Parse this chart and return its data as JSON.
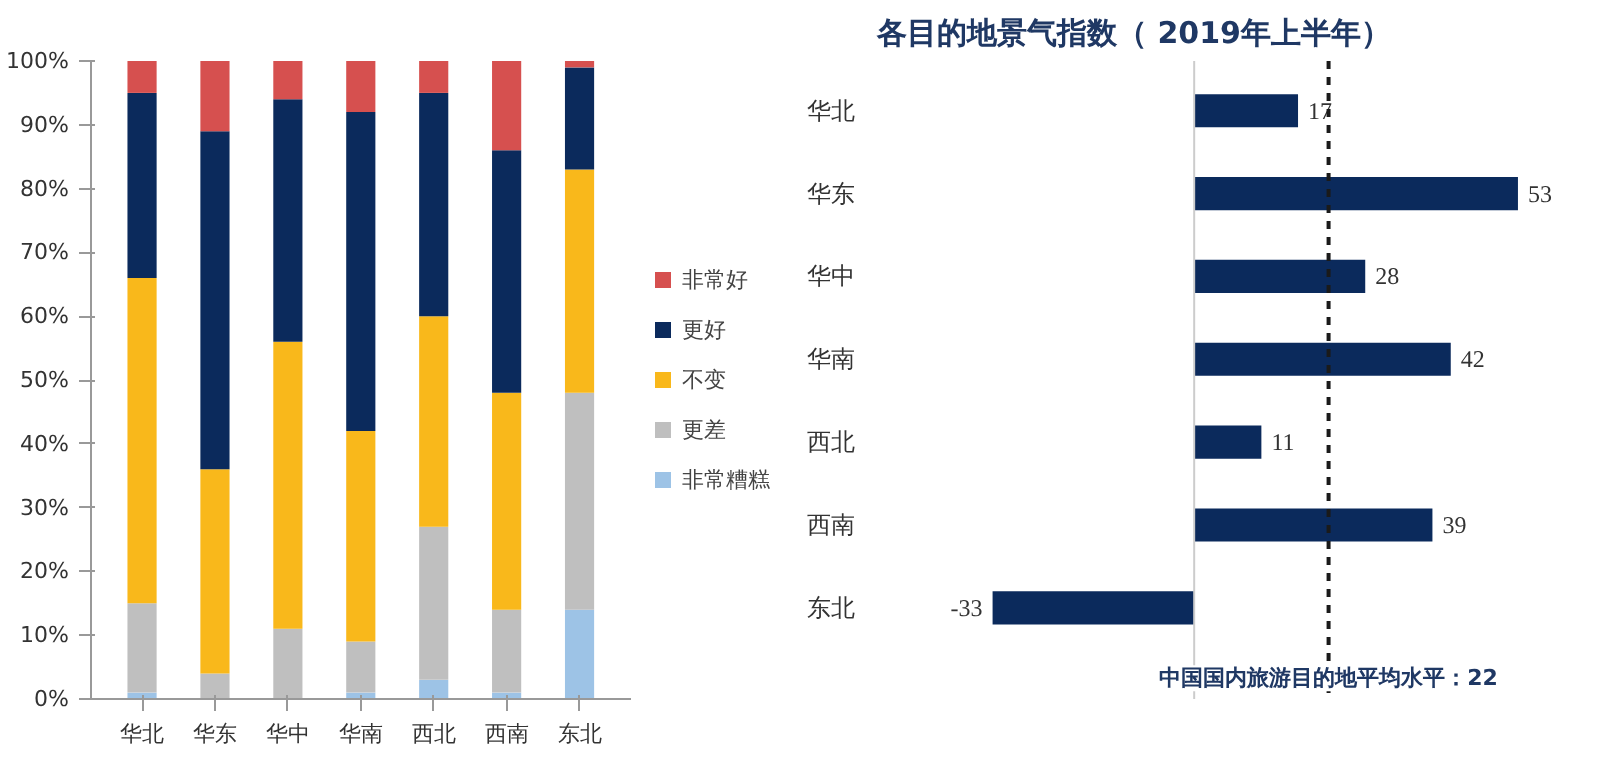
{
  "chart_data": [
    {
      "type": "bar",
      "stacked": true,
      "categories": [
        "华北",
        "华东",
        "华中",
        "华南",
        "西北",
        "西南",
        "东北"
      ],
      "series": [
        {
          "name": "非常糟糕",
          "color": "#9dc3e6",
          "values": [
            1,
            0,
            0,
            1,
            3,
            1,
            14
          ]
        },
        {
          "name": "更差",
          "color": "#bfbfbf",
          "values": [
            14,
            4,
            11,
            8,
            24,
            13,
            34
          ]
        },
        {
          "name": "不变",
          "color": "#f9b81b",
          "values": [
            51,
            32,
            45,
            33,
            33,
            34,
            35
          ]
        },
        {
          "name": "更好",
          "color": "#0b2a5c",
          "values": [
            29,
            53,
            38,
            50,
            35,
            38,
            16
          ]
        },
        {
          "name": "非常好",
          "color": "#d6504f",
          "values": [
            5,
            11,
            6,
            8,
            5,
            14,
            1
          ]
        }
      ],
      "ylim": [
        0,
        100
      ],
      "yticks": [
        {
          "value": 0,
          "label": "0%"
        },
        {
          "value": 10,
          "label": "10%"
        },
        {
          "value": 20,
          "label": "20%"
        },
        {
          "value": 30,
          "label": "30%"
        },
        {
          "value": 40,
          "label": "40%"
        },
        {
          "value": 50,
          "label": "50%"
        },
        {
          "value": 60,
          "label": "60%"
        },
        {
          "value": 70,
          "label": "70%"
        },
        {
          "value": 80,
          "label": "80%"
        },
        {
          "value": 90,
          "label": "90%"
        },
        {
          "value": 100,
          "label": "100%"
        }
      ],
      "grid": false,
      "legend": "right"
    },
    {
      "type": "bar",
      "orientation": "horizontal",
      "title": "各目的地景气指数（ 2019年上半年）",
      "categories": [
        "华北",
        "华东",
        "华中",
        "华南",
        "西北",
        "西南",
        "东北"
      ],
      "series": [
        {
          "color": "#0b2a5c",
          "values": [
            17,
            53,
            28,
            42,
            11,
            39,
            -33
          ]
        }
      ],
      "tick_labels": "y",
      "data_labels": true,
      "grid": false,
      "ref_lines": [
        {
          "axis": "x",
          "value": 22,
          "label": "中国国内旅游目的地平均水平：22",
          "color": "#1a1a1a",
          "line_style": "dashed"
        }
      ]
    }
  ]
}
